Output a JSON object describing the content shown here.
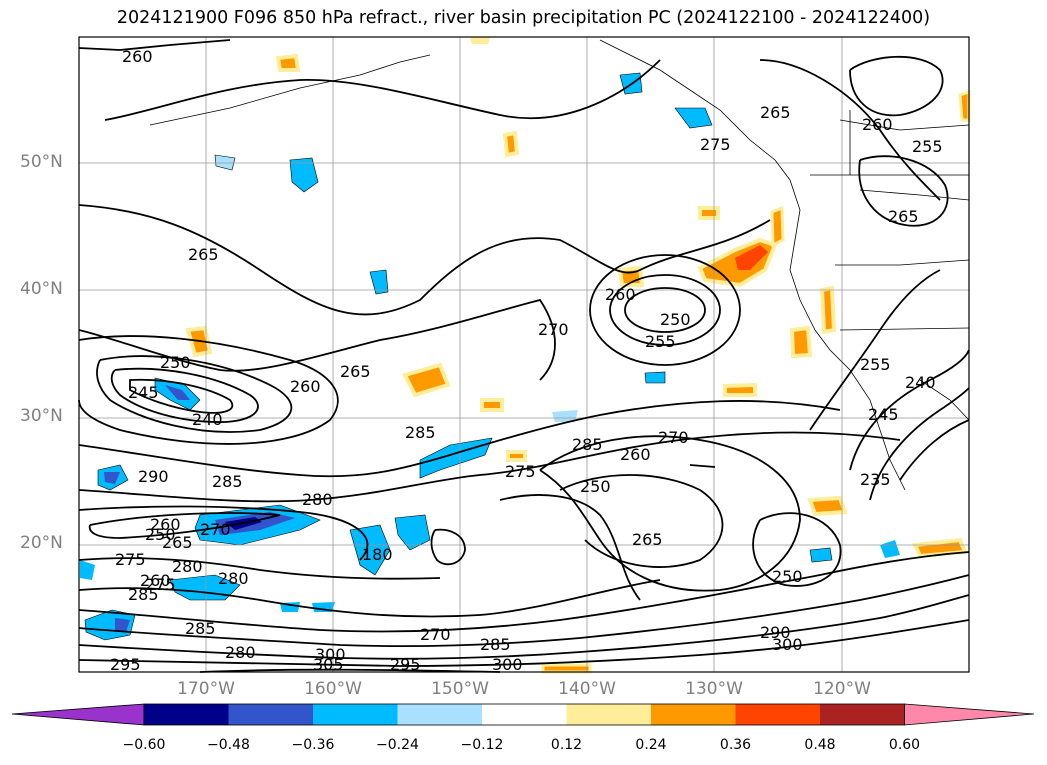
{
  "title": "2024121900 F096 850 hPa refract., river basin precipitation PC (2024122100 - 2024122400)",
  "map": {
    "lat_labels": [
      "50°N",
      "40°N",
      "30°N",
      "20°N"
    ],
    "lon_labels": [
      "170°W",
      "160°W",
      "150°W",
      "140°W",
      "130°W",
      "120°W"
    ],
    "contour_labels": [
      "260",
      "265",
      "275",
      "270",
      "265",
      "260",
      "255",
      "260",
      "265",
      "250",
      "255",
      "250",
      "245",
      "240",
      "260",
      "265",
      "285",
      "290",
      "285",
      "280",
      "285",
      "270",
      "265",
      "260",
      "275",
      "285",
      "275",
      "250",
      "260",
      "270",
      "265",
      "280",
      "275",
      "260",
      "280",
      "285",
      "280",
      "285",
      "295",
      "305",
      "300",
      "295",
      "300",
      "290",
      "300",
      "250",
      "235",
      "245",
      "255",
      "240",
      "250",
      "270",
      "180"
    ]
  },
  "colorbar": {
    "colors": [
      "#9933cc",
      "#000088",
      "#3355cc",
      "#00bbff",
      "#aae0ff",
      "#ffffff",
      "#ffee99",
      "#ff9900",
      "#ff4400",
      "#aa2222",
      "#ff88aa"
    ],
    "ticks": [
      "−0.60",
      "−0.48",
      "−0.36",
      "−0.24",
      "−0.12",
      "0.12",
      "0.24",
      "0.36",
      "0.48",
      "0.60"
    ]
  }
}
